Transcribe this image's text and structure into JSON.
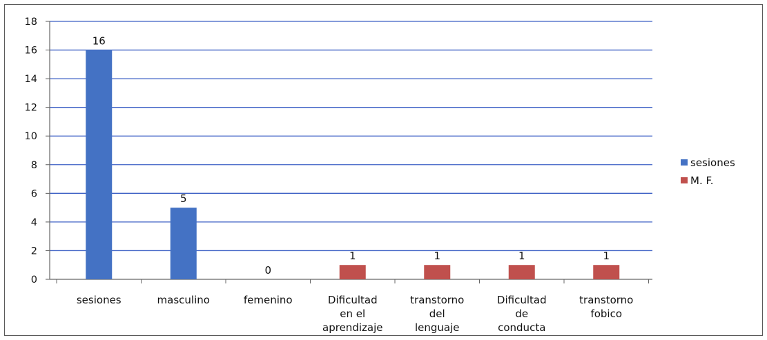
{
  "chart_data": {
    "type": "bar",
    "categories": [
      [
        "sesiones"
      ],
      [
        "masculino"
      ],
      [
        "femenino"
      ],
      [
        "Dificultad",
        "en el",
        "aprendizaje"
      ],
      [
        "transtorno",
        "del",
        "lenguaje"
      ],
      [
        "Dificultad",
        "de",
        "conducta"
      ],
      [
        "transtorno",
        "fobico"
      ]
    ],
    "series": [
      {
        "name": "sesiones",
        "color": "#4472C4",
        "values": [
          16,
          5,
          0,
          null,
          null,
          null,
          null
        ]
      },
      {
        "name": "M. F.",
        "color": "#C0504D",
        "values": [
          null,
          null,
          null,
          1,
          1,
          1,
          1
        ]
      }
    ],
    "data_labels": [
      "16",
      "5",
      "0",
      "1",
      "1",
      "1",
      "1"
    ],
    "yticks": [
      "0",
      "2",
      "4",
      "6",
      "8",
      "10",
      "12",
      "14",
      "16",
      "18"
    ],
    "ylim": [
      0,
      18
    ],
    "grid": true,
    "gridline_color": "#3b5fc4",
    "legend_position": "right",
    "title": "",
    "xlabel": "",
    "ylabel": ""
  }
}
